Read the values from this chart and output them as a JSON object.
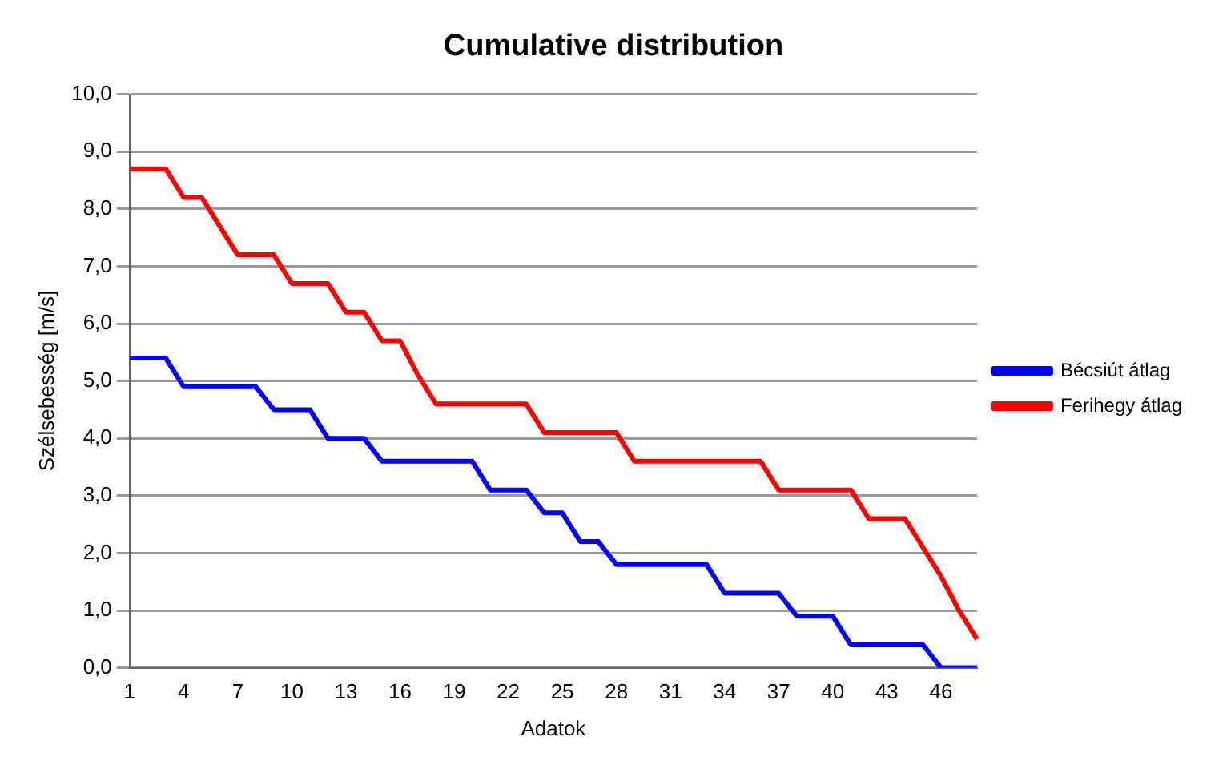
{
  "chart_data": {
    "type": "line",
    "title": "Cumulative distribution",
    "xlabel": "Adatok",
    "ylabel": "Szélsebesség [m/s]",
    "categories": [
      "1",
      null,
      null,
      "4",
      null,
      null,
      "7",
      null,
      null,
      "10",
      null,
      null,
      "13",
      null,
      null,
      "16",
      null,
      null,
      "19",
      null,
      null,
      "22",
      null,
      null,
      "25",
      null,
      null,
      "28",
      null,
      null,
      "31",
      null,
      null,
      "34",
      null,
      null,
      "37",
      null,
      null,
      "40",
      null,
      null,
      "43",
      null,
      null,
      "46",
      null,
      null
    ],
    "series": [
      {
        "name": "Bécsiút átlag",
        "color": "#0000ff",
        "values": [
          5.4,
          5.4,
          5.4,
          4.9,
          4.9,
          4.9,
          4.9,
          4.9,
          4.5,
          4.5,
          4.5,
          4.0,
          4.0,
          4.0,
          3.6,
          3.6,
          3.6,
          3.6,
          3.6,
          3.6,
          3.1,
          3.1,
          3.1,
          2.7,
          2.7,
          2.2,
          2.2,
          1.8,
          1.8,
          1.8,
          1.8,
          1.8,
          1.8,
          1.3,
          1.3,
          1.3,
          1.3,
          0.9,
          0.9,
          0.9,
          0.4,
          0.4,
          0.4,
          0.4,
          0.4,
          0.0,
          0.0,
          0.0
        ]
      },
      {
        "name": "Ferihegy átlag",
        "color": "#ff0000",
        "values": [
          8.7,
          8.7,
          8.7,
          8.2,
          8.2,
          7.7,
          7.2,
          7.2,
          7.2,
          6.7,
          6.7,
          6.7,
          6.2,
          6.2,
          5.7,
          5.7,
          5.1,
          4.6,
          4.6,
          4.6,
          4.6,
          4.6,
          4.6,
          4.1,
          4.1,
          4.1,
          4.1,
          4.1,
          3.6,
          3.6,
          3.6,
          3.6,
          3.6,
          3.6,
          3.6,
          3.6,
          3.1,
          3.1,
          3.1,
          3.1,
          3.1,
          2.6,
          2.6,
          2.6,
          2.1,
          1.6,
          1.0,
          0.5
        ]
      }
    ],
    "ylim": [
      0,
      10
    ],
    "yticks": [
      {
        "value": 0,
        "label": "0,0"
      },
      {
        "value": 1,
        "label": "1,0"
      },
      {
        "value": 2,
        "label": "2,0"
      },
      {
        "value": 3,
        "label": "3,0"
      },
      {
        "value": 4,
        "label": "4,0"
      },
      {
        "value": 5,
        "label": "5,0"
      },
      {
        "value": 6,
        "label": "6,0"
      },
      {
        "value": 7,
        "label": "7,0"
      },
      {
        "value": 8,
        "label": "8,0"
      },
      {
        "value": 9,
        "label": "9,0"
      },
      {
        "value": 10,
        "label": "10,0"
      }
    ],
    "grid": "y",
    "legend": "right",
    "marker": "none",
    "line_style": "solid"
  }
}
